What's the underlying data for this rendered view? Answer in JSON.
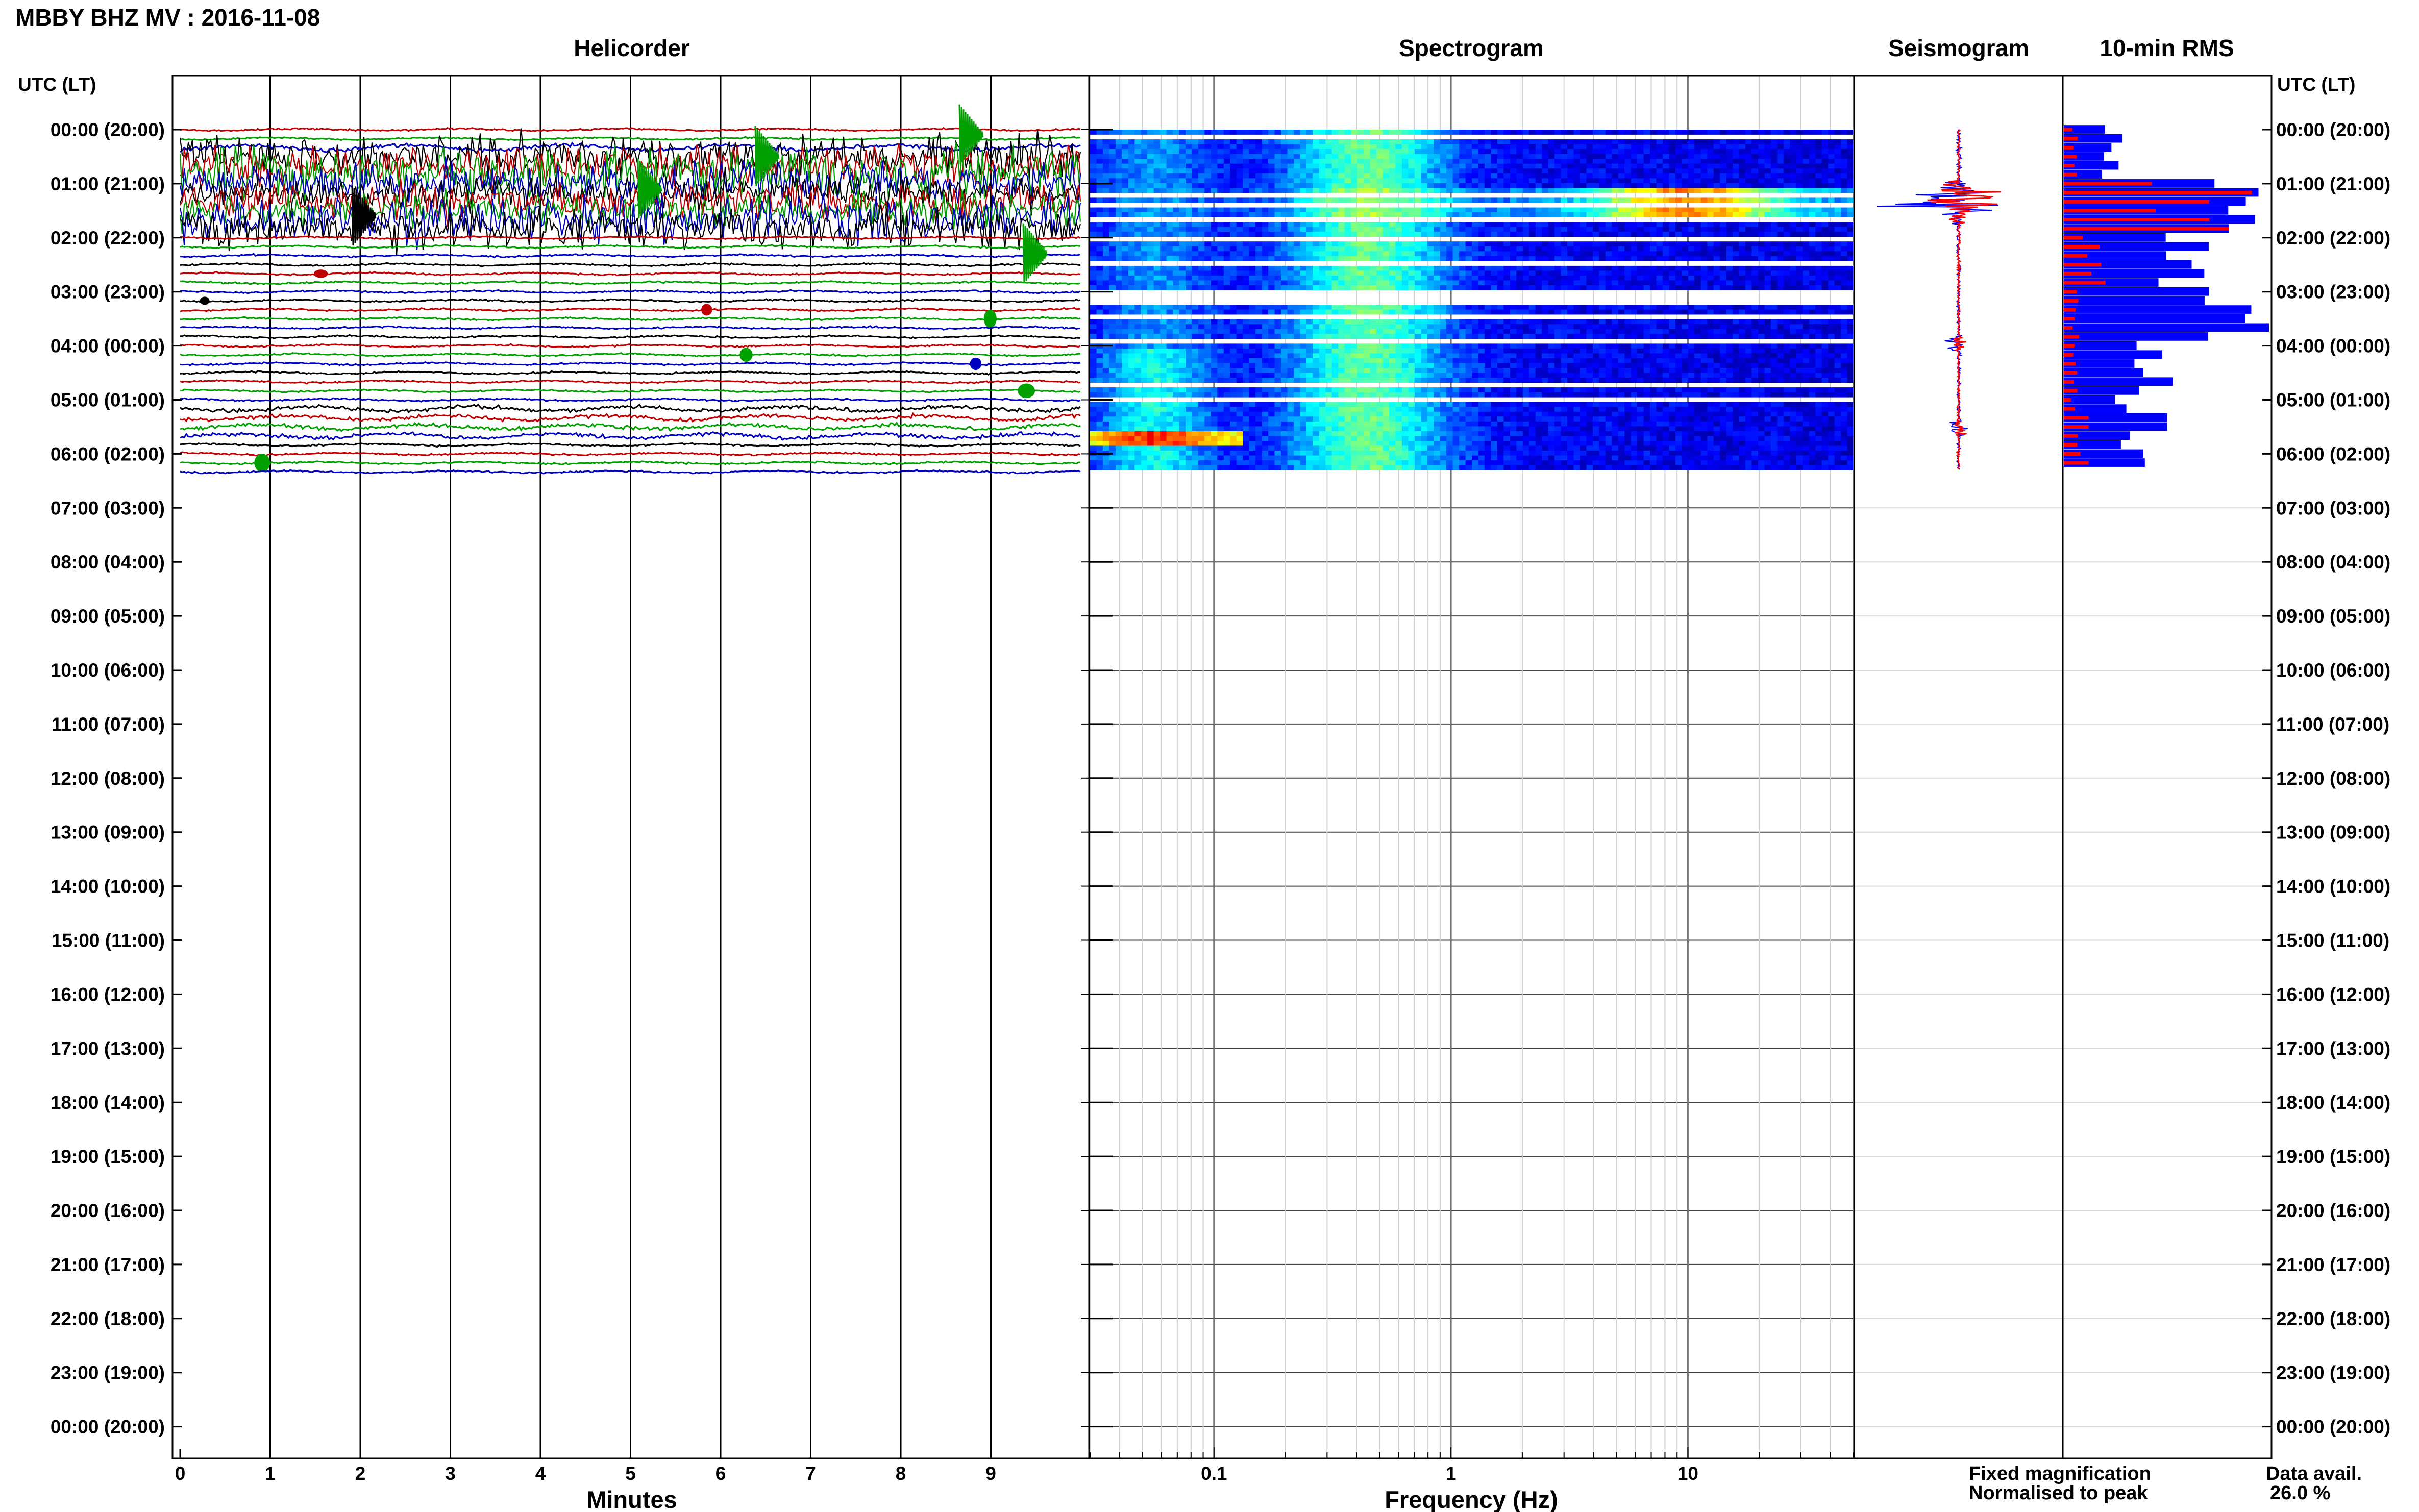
{
  "header": {
    "title": "MBBY BHZ MV : 2016-11-08",
    "utc_label": "UTC (LT)"
  },
  "panels": {
    "helicorder": "Helicorder",
    "spectrogram": "Spectrogram",
    "seismogram": "Seismogram",
    "rms": "10-min RMS"
  },
  "axes": {
    "minutes_label": "Minutes",
    "frequency_label": "Frequency (Hz)"
  },
  "legend": {
    "fixed": "Fixed magnification",
    "normalised": "Normalised to peak",
    "fixed_color": "#0000ff",
    "normalised_color": "#ff0000"
  },
  "availability": {
    "label": "Data avail.",
    "value": "26.0 %"
  },
  "chart_data": {
    "type": "helicorder",
    "time_labels": [
      "00:00 (20:00)",
      "01:00 (21:00)",
      "02:00 (22:00)",
      "03:00 (23:00)",
      "04:00 (00:00)",
      "05:00 (01:00)",
      "06:00 (02:00)",
      "07:00 (03:00)",
      "08:00 (04:00)",
      "09:00 (05:00)",
      "10:00 (06:00)",
      "11:00 (07:00)",
      "12:00 (08:00)",
      "13:00 (09:00)",
      "14:00 (10:00)",
      "15:00 (11:00)",
      "16:00 (12:00)",
      "17:00 (13:00)",
      "18:00 (14:00)",
      "19:00 (15:00)",
      "20:00 (16:00)",
      "21:00 (17:00)",
      "22:00 (18:00)",
      "23:00 (19:00)",
      "00:00 (20:00)"
    ],
    "minute_ticks": [
      "0",
      "1",
      "2",
      "3",
      "4",
      "5",
      "6",
      "7",
      "8",
      "9"
    ],
    "frequency_ticks": [
      "0.1",
      "1",
      "10"
    ],
    "frequency_range_hz": [
      0.03,
      50
    ],
    "data_end_hour": 6.3,
    "trace_colors": [
      "#c00000",
      "#00a000",
      "#0000c0",
      "#000000"
    ],
    "rms_blue_hourly": [
      0.25,
      0.8,
      0.65,
      0.85,
      0.45,
      0.35,
      0.45
    ],
    "rms_red_hourly": [
      0.05,
      0.7,
      0.15,
      0.07,
      0.05,
      0.05,
      0.1
    ],
    "spectrogram_peak_hz": 10
  }
}
